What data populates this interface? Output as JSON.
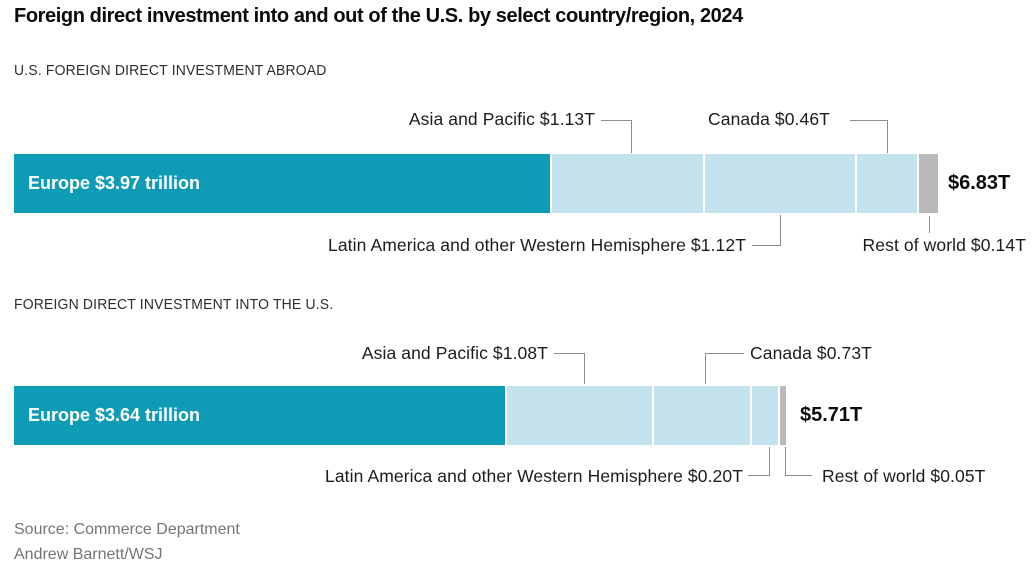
{
  "title": "Foreign direct investment into and out of the U.S. by select country/region, 2024",
  "footer": {
    "source": "Source: Commerce Department",
    "credit": "Andrew Barnett/WSJ"
  },
  "colors": {
    "europe": "#0d9bb6",
    "region": "#c5e2ef",
    "rest": "#bababa",
    "leader": "#8c8c8c",
    "title_text": "#0a0a0a",
    "footer_text": "#757575"
  },
  "chart_data": [
    {
      "type": "bar",
      "orientation": "horizontal-stacked",
      "section_label": "U.S. FOREIGN DIRECT INVESTMENT ABROAD",
      "unit": "USD trillions",
      "total": 6.83,
      "total_label": "$6.83T",
      "legend": "none",
      "axes": "none",
      "segments": [
        {
          "name": "Europe",
          "value": 3.97,
          "label": "Europe $3.97 trillion",
          "color_key": "europe",
          "label_placement": "inside"
        },
        {
          "name": "Asia and Pacific",
          "value": 1.13,
          "label": "Asia and Pacific $1.13T",
          "color_key": "region",
          "label_placement": "callout-above"
        },
        {
          "name": "Latin America and other Western Hemisphere",
          "value": 1.12,
          "label": "Latin America and other Western Hemisphere $1.12T",
          "color_key": "region",
          "label_placement": "callout-below"
        },
        {
          "name": "Canada",
          "value": 0.46,
          "label": "Canada $0.46T",
          "color_key": "region",
          "label_placement": "callout-above"
        },
        {
          "name": "Rest of world",
          "value": 0.14,
          "label": "Rest of world $0.14T",
          "color_key": "rest",
          "label_placement": "callout-below"
        }
      ]
    },
    {
      "type": "bar",
      "orientation": "horizontal-stacked",
      "section_label": "FOREIGN DIRECT INVESTMENT INTO THE U.S.",
      "unit": "USD trillions",
      "total": 5.71,
      "total_label": "$5.71T",
      "legend": "none",
      "axes": "none",
      "segments": [
        {
          "name": "Europe",
          "value": 3.64,
          "label": "Europe $3.64 trillion",
          "color_key": "europe",
          "label_placement": "inside"
        },
        {
          "name": "Asia and Pacific",
          "value": 1.08,
          "label": "Asia and Pacific $1.08T",
          "color_key": "region",
          "label_placement": "callout-above"
        },
        {
          "name": "Canada",
          "value": 0.73,
          "label": "Canada $0.73T",
          "color_key": "region",
          "label_placement": "callout-above"
        },
        {
          "name": "Latin America and other Western Hemisphere",
          "value": 0.2,
          "label": "Latin America and other Western Hemisphere $0.20T",
          "color_key": "region",
          "label_placement": "callout-below"
        },
        {
          "name": "Rest of world",
          "value": 0.05,
          "label": "Rest of world $0.05T",
          "color_key": "rest",
          "label_placement": "callout-below"
        }
      ]
    }
  ]
}
